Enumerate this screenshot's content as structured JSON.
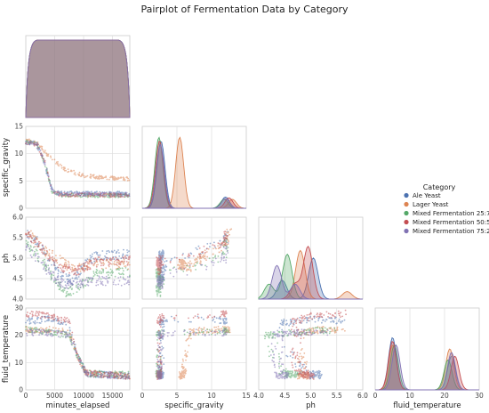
{
  "chart_data": {
    "type": "scatter",
    "title": "Pairplot of Fermentation Data by Category",
    "variables": [
      "minutes_elapsed",
      "specific_gravity",
      "ph",
      "fluid_temperature"
    ],
    "axis_ranges": {
      "minutes_elapsed": [
        0,
        18000
      ],
      "specific_gravity": [
        0,
        15
      ],
      "ph": [
        4.0,
        6.0
      ],
      "fluid_temperature": [
        0,
        30
      ]
    },
    "ticks": {
      "minutes_elapsed": [
        "0",
        "5000",
        "10000",
        "15000"
      ],
      "specific_gravity": [
        "0",
        "5",
        "10",
        "15"
      ],
      "ph": [
        "4.0",
        "4.5",
        "5.0",
        "5.5",
        "6.0"
      ],
      "fluid_temperature": [
        "0",
        "10",
        "20",
        "30"
      ]
    },
    "grid": true,
    "legend": {
      "title": "Category",
      "position": "right",
      "entries": [
        {
          "name": "Ale Yeast",
          "color": "#4c72b0"
        },
        {
          "name": "Lager Yeast",
          "color": "#dd8452"
        },
        {
          "name": "Mixed Fermentation 25:75",
          "color": "#55a868"
        },
        {
          "name": "Mixed Fermentation 50:50",
          "color": "#c44e52"
        },
        {
          "name": "Mixed Fermentation 75:25",
          "color": "#8172b3"
        }
      ]
    },
    "series": [
      {
        "name": "Ale Yeast",
        "color": "#4c72b0",
        "sg_curve": [
          [
            0,
            12.0
          ],
          [
            1500,
            12.0
          ],
          [
            2500,
            10.5
          ],
          [
            3500,
            7.0
          ],
          [
            4500,
            3.5
          ],
          [
            5500,
            2.8
          ],
          [
            18000,
            2.7
          ]
        ],
        "ph_curve": [
          [
            0,
            5.6
          ],
          [
            2000,
            5.4
          ],
          [
            4000,
            5.0
          ],
          [
            6000,
            4.55
          ],
          [
            8000,
            4.45
          ],
          [
            10000,
            4.8
          ],
          [
            12000,
            5.05
          ],
          [
            18000,
            5.1
          ]
        ],
        "temp_curve": [
          [
            0,
            25
          ],
          [
            4000,
            26
          ],
          [
            7500,
            24
          ],
          [
            9000,
            12
          ],
          [
            10500,
            6
          ],
          [
            18000,
            5
          ]
        ],
        "sg_density": [
          [
            2.7,
            0.9
          ],
          [
            12,
            0.15
          ]
        ],
        "ph_density": [
          [
            5.05,
            0.55
          ],
          [
            4.45,
            0.25
          ]
        ],
        "temp_density": [
          [
            5,
            0.7
          ],
          [
            22,
            0.45
          ]
        ]
      },
      {
        "name": "Lager Yeast",
        "color": "#dd8452",
        "sg_curve": [
          [
            0,
            12.5
          ],
          [
            2000,
            12.0
          ],
          [
            4000,
            9.5
          ],
          [
            7000,
            7.0
          ],
          [
            10000,
            6.0
          ],
          [
            14000,
            5.6
          ],
          [
            18000,
            5.4
          ]
        ],
        "ph_curve": [
          [
            0,
            5.7
          ],
          [
            3000,
            5.2
          ],
          [
            6000,
            4.95
          ],
          [
            8000,
            4.75
          ],
          [
            11000,
            4.85
          ],
          [
            18000,
            4.85
          ]
        ],
        "temp_curve": [
          [
            0,
            22
          ],
          [
            4000,
            22
          ],
          [
            7500,
            21
          ],
          [
            9000,
            12
          ],
          [
            10500,
            6
          ],
          [
            18000,
            5
          ]
        ],
        "sg_density": [
          [
            5.4,
            0.95
          ],
          [
            13,
            0.12
          ]
        ],
        "ph_density": [
          [
            4.8,
            0.65
          ],
          [
            5.7,
            0.1
          ]
        ],
        "temp_density": [
          [
            5,
            0.6
          ],
          [
            21.5,
            0.55
          ]
        ]
      },
      {
        "name": "Mixed Fermentation 25:75",
        "color": "#55a868",
        "sg_curve": [
          [
            0,
            12.2
          ],
          [
            2000,
            11.8
          ],
          [
            3500,
            7.5
          ],
          [
            4500,
            3.0
          ],
          [
            6000,
            2.4
          ],
          [
            18000,
            2.3
          ]
        ],
        "ph_curve": [
          [
            0,
            5.4
          ],
          [
            3000,
            4.9
          ],
          [
            5000,
            4.45
          ],
          [
            7000,
            4.15
          ],
          [
            9000,
            4.3
          ],
          [
            12000,
            4.6
          ],
          [
            18000,
            4.65
          ]
        ],
        "temp_curve": [
          [
            0,
            22
          ],
          [
            4000,
            21
          ],
          [
            7500,
            20
          ],
          [
            9000,
            12
          ],
          [
            10500,
            6
          ],
          [
            18000,
            5.5
          ]
        ],
        "sg_density": [
          [
            2.4,
            0.95
          ],
          [
            11.8,
            0.12
          ]
        ],
        "ph_density": [
          [
            4.55,
            0.6
          ],
          [
            4.2,
            0.2
          ]
        ],
        "temp_density": [
          [
            5.5,
            0.6
          ],
          [
            21,
            0.4
          ]
        ]
      },
      {
        "name": "Mixed Fermentation 50:50",
        "color": "#c44e52",
        "sg_curve": [
          [
            0,
            12.0
          ],
          [
            2000,
            11.5
          ],
          [
            3500,
            8.0
          ],
          [
            4500,
            3.0
          ],
          [
            6000,
            2.5
          ],
          [
            18000,
            2.4
          ]
        ],
        "ph_curve": [
          [
            0,
            5.6
          ],
          [
            3000,
            5.2
          ],
          [
            6000,
            4.75
          ],
          [
            9000,
            4.7
          ],
          [
            12000,
            4.9
          ],
          [
            18000,
            4.95
          ]
        ],
        "temp_curve": [
          [
            0,
            28
          ],
          [
            4000,
            27
          ],
          [
            7500,
            25
          ],
          [
            9000,
            12
          ],
          [
            10500,
            6
          ],
          [
            18000,
            5
          ]
        ],
        "sg_density": [
          [
            2.5,
            0.9
          ],
          [
            12.5,
            0.14
          ]
        ],
        "ph_density": [
          [
            4.95,
            0.7
          ],
          [
            4.7,
            0.2
          ]
        ],
        "temp_density": [
          [
            5,
            0.65
          ],
          [
            23,
            0.45
          ]
        ]
      },
      {
        "name": "Mixed Fermentation 75:25",
        "color": "#8172b3",
        "sg_curve": [
          [
            0,
            12.1
          ],
          [
            2000,
            11.7
          ],
          [
            3500,
            7.8
          ],
          [
            4500,
            3.2
          ],
          [
            6000,
            2.6
          ],
          [
            18000,
            2.5
          ]
        ],
        "ph_curve": [
          [
            0,
            5.3
          ],
          [
            3000,
            4.8
          ],
          [
            6000,
            4.4
          ],
          [
            9000,
            4.35
          ],
          [
            12000,
            4.45
          ],
          [
            18000,
            4.45
          ]
        ],
        "temp_curve": [
          [
            0,
            21
          ],
          [
            4000,
            21
          ],
          [
            7500,
            20
          ],
          [
            9000,
            12
          ],
          [
            10500,
            6
          ],
          [
            18000,
            5
          ]
        ],
        "sg_density": [
          [
            2.6,
            0.85
          ],
          [
            12,
            0.13
          ]
        ],
        "ph_density": [
          [
            4.35,
            0.45
          ],
          [
            4.7,
            0.2
          ]
        ],
        "temp_density": [
          [
            6,
            0.6
          ],
          [
            22,
            0.5
          ]
        ]
      }
    ]
  }
}
